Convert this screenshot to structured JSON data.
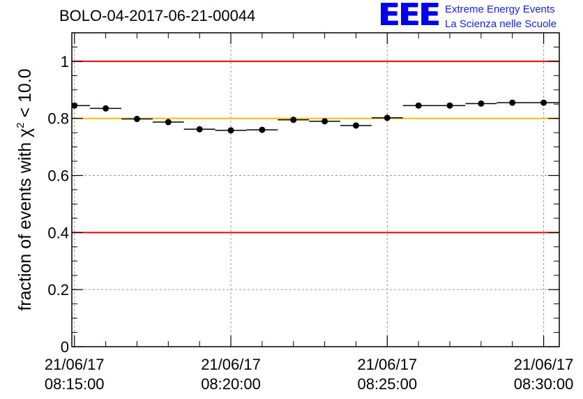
{
  "logo": {
    "mark": "EEE",
    "line1": "Extreme Energy Events",
    "line2": "La Scienza nelle Scuole",
    "color": "#0000ee"
  },
  "chart_data": {
    "type": "scatter",
    "title": "BOLO-04-2017-06-21-00044",
    "ylabel": "fraction of events with",
    "ylabel_symbol": "χ",
    "ylabel_superscript": "2",
    "ylabel_tail": " < 10.0",
    "xlabel": "",
    "ylim": [
      0,
      1.1
    ],
    "xlim": [
      "2017-06-21 08:14:55",
      "2017-06-21 08:30:30"
    ],
    "x_ticks": [
      {
        "date": "21/06/17",
        "time": "08:15:00",
        "x": "2017-06-21 08:15:00"
      },
      {
        "date": "21/06/17",
        "time": "08:20:00",
        "x": "2017-06-21 08:20:00"
      },
      {
        "date": "21/06/17",
        "time": "08:25:00",
        "x": "2017-06-21 08:25:00"
      },
      {
        "date": "21/06/17",
        "time": "08:30:00",
        "x": "2017-06-21 08:30:00"
      }
    ],
    "y_ticks": [
      {
        "value": 0,
        "label": "0"
      },
      {
        "value": 0.2,
        "label": "0.2"
      },
      {
        "value": 0.4,
        "label": "0.4"
      },
      {
        "value": 0.6,
        "label": "0.6"
      },
      {
        "value": 0.8,
        "label": "0.8"
      },
      {
        "value": 1,
        "label": "1"
      }
    ],
    "grid": true,
    "reference_lines": [
      {
        "y": 1.0,
        "color": "#ee0000"
      },
      {
        "y": 0.8,
        "color": "#ffbb00"
      },
      {
        "y": 0.4,
        "color": "#ee0000"
      }
    ],
    "series": [
      {
        "color": "#000000",
        "points": [
          {
            "x": "2017-06-21 08:15:00",
            "y": 0.845
          },
          {
            "x": "2017-06-21 08:16:00",
            "y": 0.835
          },
          {
            "x": "2017-06-21 08:17:00",
            "y": 0.798
          },
          {
            "x": "2017-06-21 08:18:00",
            "y": 0.787
          },
          {
            "x": "2017-06-21 08:19:00",
            "y": 0.762
          },
          {
            "x": "2017-06-21 08:20:00",
            "y": 0.758
          },
          {
            "x": "2017-06-21 08:21:00",
            "y": 0.76
          },
          {
            "x": "2017-06-21 08:22:00",
            "y": 0.795
          },
          {
            "x": "2017-06-21 08:23:00",
            "y": 0.79
          },
          {
            "x": "2017-06-21 08:24:00",
            "y": 0.775
          },
          {
            "x": "2017-06-21 08:25:00",
            "y": 0.802
          },
          {
            "x": "2017-06-21 08:26:00",
            "y": 0.845
          },
          {
            "x": "2017-06-21 08:27:00",
            "y": 0.845
          },
          {
            "x": "2017-06-21 08:28:00",
            "y": 0.852
          },
          {
            "x": "2017-06-21 08:29:00",
            "y": 0.855
          },
          {
            "x": "2017-06-21 08:30:00",
            "y": 0.855
          }
        ]
      }
    ]
  }
}
